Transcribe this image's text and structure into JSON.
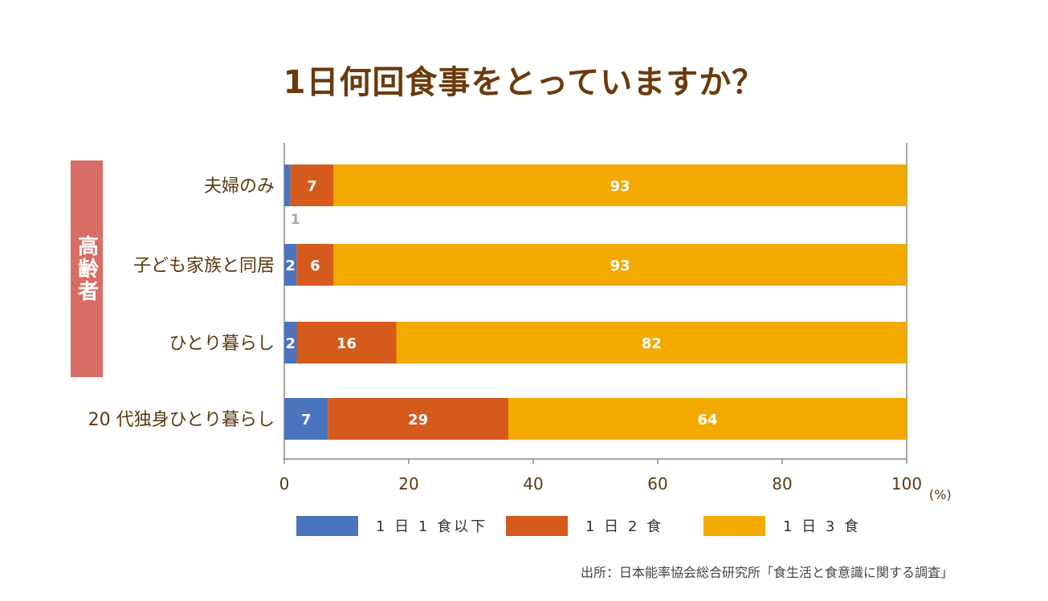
{
  "title": "1日何回食事をとっていますか？",
  "group_label": "高齢者",
  "source": "出所：日本能率協会総合研究所「食生活と食意識に関する調査」",
  "colors": {
    "one_meal": "#4a74be",
    "two_meals": "#d65a1c",
    "three_meals": "#f2a900",
    "title": "#6b3a0c",
    "group_bar": "#d86c67"
  },
  "chart_data": {
    "type": "bar",
    "orientation": "horizontal",
    "stacked": true,
    "categories": [
      "夫婦のみ",
      "子ども家族と同居",
      "ひとり暮らし",
      "20 代独身ひとり暮らし"
    ],
    "series": [
      {
        "name": "1 日 1 食以下",
        "values": [
          1,
          2,
          2,
          7
        ]
      },
      {
        "name": "1 日 2 食",
        "values": [
          7,
          6,
          16,
          29
        ]
      },
      {
        "name": "1 日 3 食",
        "values": [
          93,
          93,
          82,
          64
        ]
      }
    ],
    "xlim": [
      0,
      100
    ],
    "xticks": [
      "0",
      "20",
      "40",
      "60",
      "80",
      "100"
    ],
    "xunit": "(%)",
    "legend_position": "bottom"
  }
}
